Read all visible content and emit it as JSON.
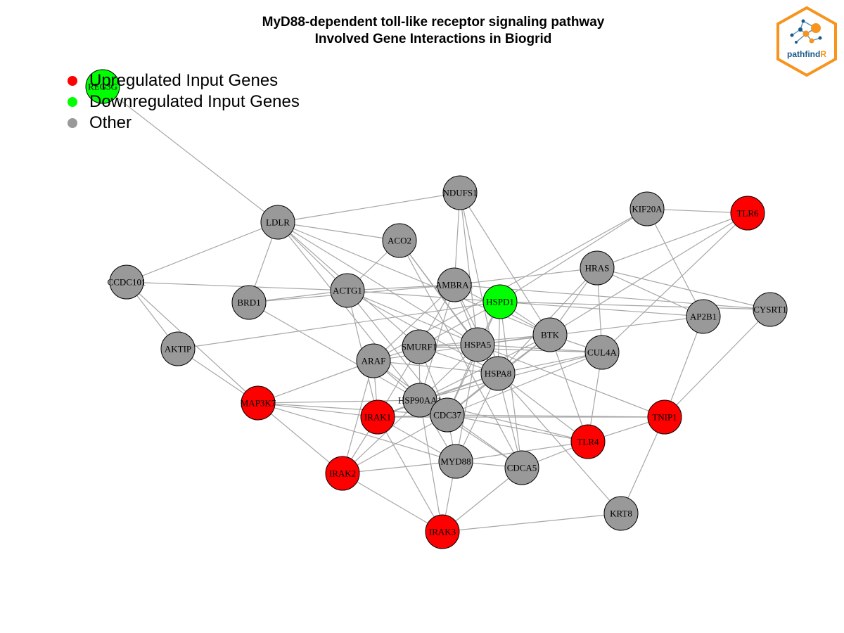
{
  "title": {
    "line1": "MyD88-dependent toll-like receptor signaling pathway",
    "line2": "Involved Gene Interactions in Biogrid"
  },
  "legend": [
    {
      "label": "Upregulated Input Genes",
      "color": "#ff0000"
    },
    {
      "label": "Downregulated Input Genes",
      "color": "#00ff00"
    },
    {
      "label": "Other",
      "color": "#999999"
    }
  ],
  "logo": {
    "text_main": "pathfind",
    "text_accent": "R",
    "accent_color": "#f7941d",
    "text_color": "#1a5a8a"
  },
  "colors": {
    "up": "#ff0000",
    "down": "#00ff00",
    "other": "#999999",
    "edge": "#a6a6a6"
  },
  "nodes": [
    {
      "id": "REG3G",
      "type": "down"
    },
    {
      "id": "NDUFS1",
      "type": "other"
    },
    {
      "id": "LDLR",
      "type": "other"
    },
    {
      "id": "KIF20A",
      "type": "other"
    },
    {
      "id": "TLR6",
      "type": "up"
    },
    {
      "id": "ACO2",
      "type": "other"
    },
    {
      "id": "HRAS",
      "type": "other"
    },
    {
      "id": "CCDC101",
      "type": "other"
    },
    {
      "id": "AMBRA1",
      "type": "other"
    },
    {
      "id": "ACTG1",
      "type": "other"
    },
    {
      "id": "BRD1",
      "type": "other"
    },
    {
      "id": "HSPD1",
      "type": "down"
    },
    {
      "id": "AP2B1",
      "type": "other"
    },
    {
      "id": "CYSRT1",
      "type": "other"
    },
    {
      "id": "BTK",
      "type": "other"
    },
    {
      "id": "AKTIP",
      "type": "other"
    },
    {
      "id": "SMURF1",
      "type": "other"
    },
    {
      "id": "HSPA5",
      "type": "other"
    },
    {
      "id": "CUL4A",
      "type": "other"
    },
    {
      "id": "ARAF",
      "type": "other"
    },
    {
      "id": "HSPA8",
      "type": "other"
    },
    {
      "id": "HSP90AA1",
      "type": "other"
    },
    {
      "id": "MAP3K7",
      "type": "up"
    },
    {
      "id": "IRAK1",
      "type": "up"
    },
    {
      "id": "CDC37",
      "type": "other"
    },
    {
      "id": "TNIP1",
      "type": "up"
    },
    {
      "id": "TLR4",
      "type": "up"
    },
    {
      "id": "MYD88",
      "type": "other"
    },
    {
      "id": "CDCA5",
      "type": "other"
    },
    {
      "id": "IRAK2",
      "type": "up"
    },
    {
      "id": "KRT8",
      "type": "other"
    },
    {
      "id": "IRAK3",
      "type": "up"
    }
  ],
  "edges": [
    [
      "REG3G",
      "LDLR"
    ],
    [
      "LDLR",
      "NDUFS1"
    ],
    [
      "LDLR",
      "ACO2"
    ],
    [
      "LDLR",
      "CCDC101"
    ],
    [
      "LDLR",
      "BRD1"
    ],
    [
      "LDLR",
      "ACTG1"
    ],
    [
      "LDLR",
      "HSPA5"
    ],
    [
      "LDLR",
      "SMURF1"
    ],
    [
      "LDLR",
      "HSP90AA1"
    ],
    [
      "LDLR",
      "BTK"
    ],
    [
      "NDUFS1",
      "AMBRA1"
    ],
    [
      "NDUFS1",
      "HSPA5"
    ],
    [
      "NDUFS1",
      "BTK"
    ],
    [
      "NDUFS1",
      "HSPA8"
    ],
    [
      "ACO2",
      "ACTG1"
    ],
    [
      "ACO2",
      "HSPA5"
    ],
    [
      "ACO2",
      "HSPA8"
    ],
    [
      "ACO2",
      "CDCA5"
    ],
    [
      "KIF20A",
      "TLR6"
    ],
    [
      "KIF20A",
      "HSPD1"
    ],
    [
      "KIF20A",
      "AP2B1"
    ],
    [
      "KIF20A",
      "ARAF"
    ],
    [
      "TLR6",
      "HRAS"
    ],
    [
      "TLR6",
      "BTK"
    ],
    [
      "TLR6",
      "CUL4A"
    ],
    [
      "HRAS",
      "AMBRA1"
    ],
    [
      "HRAS",
      "CYSRT1"
    ],
    [
      "HRAS",
      "BTK"
    ],
    [
      "HRAS",
      "CUL4A"
    ],
    [
      "HRAS",
      "AP2B1"
    ],
    [
      "HRAS",
      "HSPA8"
    ],
    [
      "CCDC101",
      "ACTG1"
    ],
    [
      "CCDC101",
      "AKTIP"
    ],
    [
      "CCDC101",
      "MAP3K7"
    ],
    [
      "BRD1",
      "ACTG1"
    ],
    [
      "BRD1",
      "HSP90AA1"
    ],
    [
      "BRD1",
      "AMBRA1"
    ],
    [
      "ACTG1",
      "HSPD1"
    ],
    [
      "ACTG1",
      "AMBRA1"
    ],
    [
      "ACTG1",
      "HSPA5"
    ],
    [
      "ACTG1",
      "HSPA8"
    ],
    [
      "ACTG1",
      "CDC37"
    ],
    [
      "ACTG1",
      "IRAK1"
    ],
    [
      "AMBRA1",
      "SMURF1"
    ],
    [
      "AMBRA1",
      "HSPA5"
    ],
    [
      "AMBRA1",
      "HSPA8"
    ],
    [
      "AMBRA1",
      "HSP90AA1"
    ],
    [
      "AMBRA1",
      "ARAF"
    ],
    [
      "AMBRA1",
      "CYSRT1"
    ],
    [
      "AMBRA1",
      "BTK"
    ],
    [
      "HSPD1",
      "AP2B1"
    ],
    [
      "HSPD1",
      "CYSRT1"
    ],
    [
      "HSPD1",
      "SMURF1"
    ],
    [
      "HSPD1",
      "HSPA5"
    ],
    [
      "HSPD1",
      "HSPA8"
    ],
    [
      "HSPD1",
      "AKTIP"
    ],
    [
      "HSPD1",
      "CDC37"
    ],
    [
      "HSPD1",
      "BTK"
    ],
    [
      "HSPD1",
      "CDCA5"
    ],
    [
      "AP2B1",
      "TNIP1"
    ],
    [
      "AP2B1",
      "HSPA5"
    ],
    [
      "CYSRT1",
      "TNIP1"
    ],
    [
      "BTK",
      "HSPA5"
    ],
    [
      "BTK",
      "HSPA8"
    ],
    [
      "BTK",
      "CUL4A"
    ],
    [
      "BTK",
      "HSP90AA1"
    ],
    [
      "BTK",
      "TLR4"
    ],
    [
      "BTK",
      "CDC37"
    ],
    [
      "BTK",
      "SMURF1"
    ],
    [
      "AKTIP",
      "MAP3K7"
    ],
    [
      "SMURF1",
      "HSPA5"
    ],
    [
      "SMURF1",
      "ARAF"
    ],
    [
      "SMURF1",
      "HSPA8"
    ],
    [
      "SMURF1",
      "HSP90AA1"
    ],
    [
      "SMURF1",
      "CDC37"
    ],
    [
      "SMURF1",
      "IRAK1"
    ],
    [
      "SMURF1",
      "CUL4A"
    ],
    [
      "HSPA5",
      "HSPA8"
    ],
    [
      "HSPA5",
      "HSP90AA1"
    ],
    [
      "HSPA5",
      "CDC37"
    ],
    [
      "HSPA5",
      "CUL4A"
    ],
    [
      "HSPA5",
      "ARAF"
    ],
    [
      "HSPA5",
      "TNIP1"
    ],
    [
      "HSPA5",
      "MYD88"
    ],
    [
      "CUL4A",
      "HSPA8"
    ],
    [
      "CUL4A",
      "HSP90AA1"
    ],
    [
      "CUL4A",
      "TLR4"
    ],
    [
      "CUL4A",
      "CDC37"
    ],
    [
      "ARAF",
      "HSPA8"
    ],
    [
      "ARAF",
      "MAP3K7"
    ],
    [
      "ARAF",
      "IRAK1"
    ],
    [
      "ARAF",
      "HSP90AA1"
    ],
    [
      "ARAF",
      "IRAK2"
    ],
    [
      "ARAF",
      "CDC37"
    ],
    [
      "HSPA8",
      "HSP90AA1"
    ],
    [
      "HSPA8",
      "CDC37"
    ],
    [
      "HSPA8",
      "MYD88"
    ],
    [
      "HSPA8",
      "CDCA5"
    ],
    [
      "HSPA8",
      "TLR4"
    ],
    [
      "HSPA8",
      "KRT8"
    ],
    [
      "HSPA8",
      "IRAK1"
    ],
    [
      "HSP90AA1",
      "MAP3K7"
    ],
    [
      "HSP90AA1",
      "IRAK1"
    ],
    [
      "HSP90AA1",
      "CDC37"
    ],
    [
      "HSP90AA1",
      "IRAK2"
    ],
    [
      "HSP90AA1",
      "MYD88"
    ],
    [
      "HSP90AA1",
      "TLR4"
    ],
    [
      "HSP90AA1",
      "IRAK3"
    ],
    [
      "HSP90AA1",
      "CDCA5"
    ],
    [
      "MAP3K7",
      "IRAK1"
    ],
    [
      "MAP3K7",
      "CDC37"
    ],
    [
      "MAP3K7",
      "MYD88"
    ],
    [
      "MAP3K7",
      "IRAK2"
    ],
    [
      "IRAK1",
      "CDC37"
    ],
    [
      "IRAK1",
      "MYD88"
    ],
    [
      "IRAK1",
      "IRAK2"
    ],
    [
      "IRAK1",
      "IRAK3"
    ],
    [
      "IRAK1",
      "TNIP1"
    ],
    [
      "CDC37",
      "MYD88"
    ],
    [
      "CDC37",
      "TLR4"
    ],
    [
      "CDC37",
      "CDCA5"
    ],
    [
      "CDC37",
      "IRAK2"
    ],
    [
      "CDC37",
      "TNIP1"
    ],
    [
      "TNIP1",
      "TLR4"
    ],
    [
      "TNIP1",
      "KRT8"
    ],
    [
      "TLR4",
      "MYD88"
    ],
    [
      "TLR4",
      "CDCA5"
    ],
    [
      "MYD88",
      "IRAK2"
    ],
    [
      "MYD88",
      "IRAK3"
    ],
    [
      "MYD88",
      "CDCA5"
    ],
    [
      "CDCA5",
      "IRAK3"
    ],
    [
      "IRAK2",
      "IRAK3"
    ],
    [
      "IRAK3",
      "KRT8"
    ]
  ]
}
